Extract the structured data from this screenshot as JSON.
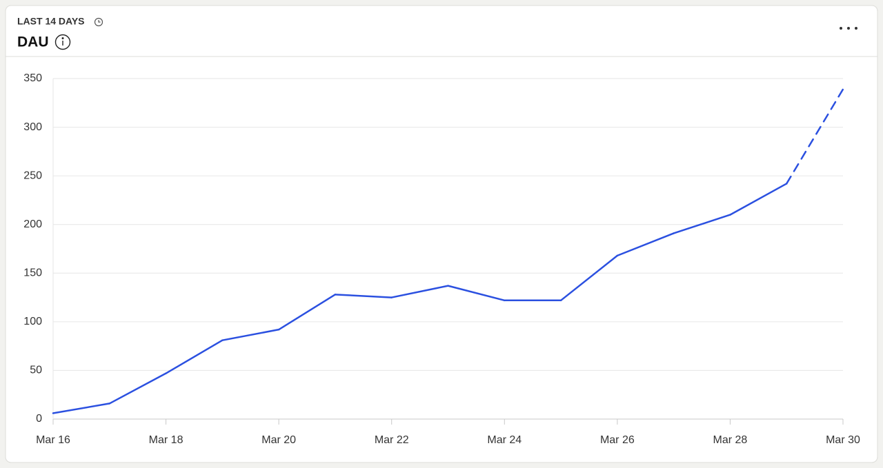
{
  "header": {
    "period": "LAST 14 DAYS",
    "title": "DAU"
  },
  "chart_data": {
    "type": "line",
    "categories": [
      "Mar 16",
      null,
      "Mar 18",
      null,
      "Mar 20",
      null,
      "Mar 22",
      null,
      "Mar 24",
      null,
      "Mar 26",
      null,
      "Mar 28",
      null,
      "Mar 30"
    ],
    "values": [
      6,
      16,
      47,
      81,
      92,
      128,
      125,
      137,
      122,
      122,
      168,
      191,
      210,
      242,
      339
    ],
    "color": "#2b50e0",
    "dashed_last_segment": true,
    "ylim": [
      0,
      350
    ],
    "yticks": [
      0,
      50,
      100,
      150,
      200,
      250,
      300,
      350
    ],
    "grid": true
  }
}
